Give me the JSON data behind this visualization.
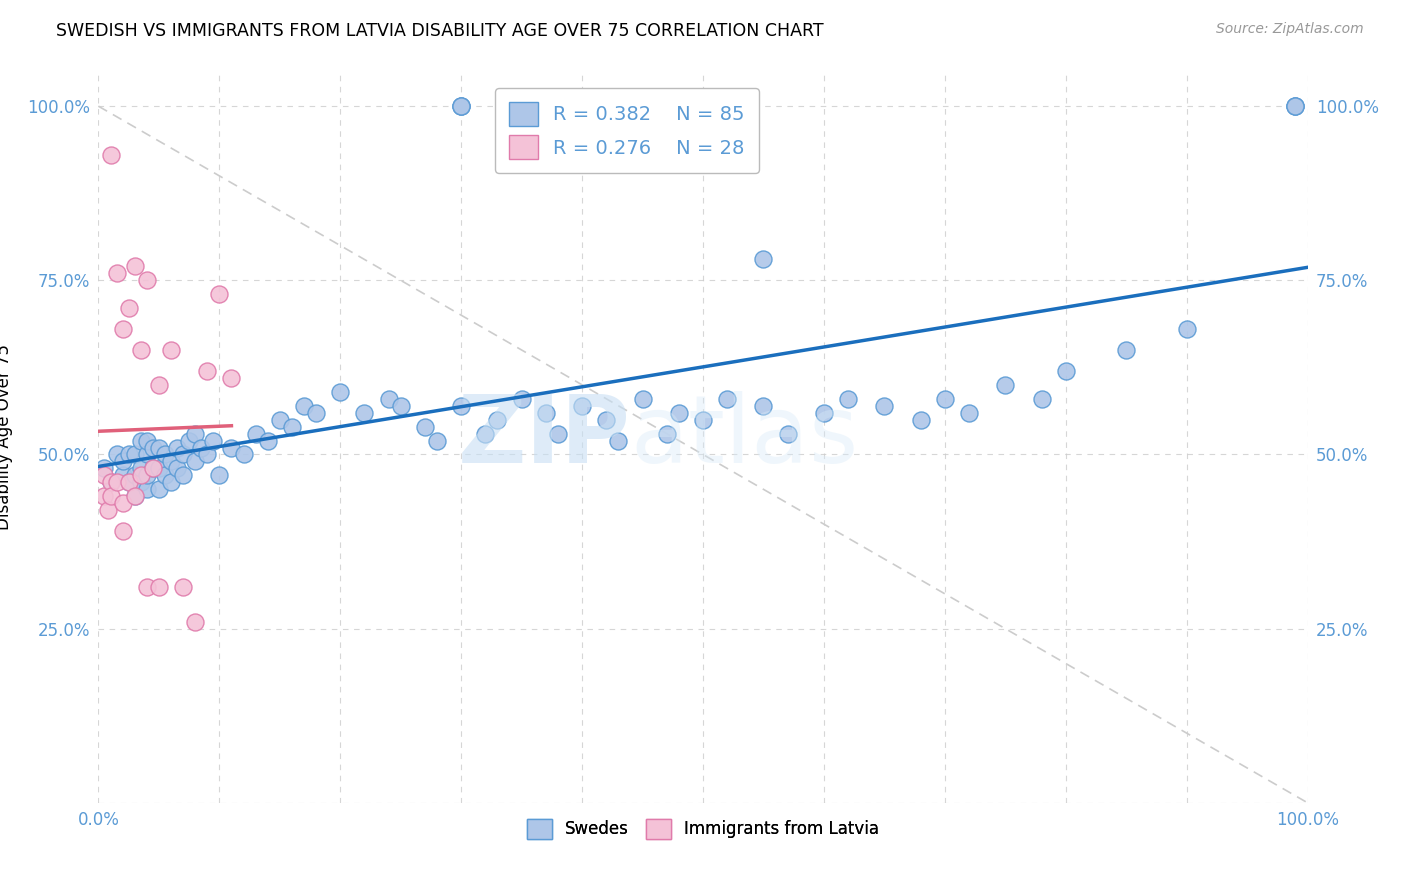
{
  "title": "SWEDISH VS IMMIGRANTS FROM LATVIA DISABILITY AGE OVER 75 CORRELATION CHART",
  "source": "Source: ZipAtlas.com",
  "ylabel": "Disability Age Over 75",
  "xlim": [
    0.0,
    1.0
  ],
  "ylim": [
    0.0,
    1.05
  ],
  "ytick_positions": [
    0.0,
    0.25,
    0.5,
    0.75,
    1.0
  ],
  "ytick_labels_left": [
    "",
    "25.0%",
    "50.0%",
    "75.0%",
    "100.0%"
  ],
  "ytick_labels_right": [
    "",
    "25.0%",
    "50.0%",
    "75.0%",
    "100.0%"
  ],
  "xtick_positions": [
    0.0,
    0.1,
    0.2,
    0.3,
    0.4,
    0.5,
    0.6,
    0.7,
    0.8,
    0.9,
    1.0
  ],
  "xtick_labels": [
    "0.0%",
    "",
    "",
    "",
    "",
    "",
    "",
    "",
    "",
    "",
    "100.0%"
  ],
  "swedes_fill": "#aec6e8",
  "swedes_edge": "#5b9bd5",
  "latvians_fill": "#f4c2d7",
  "latvians_edge": "#e07bab",
  "trend_blue": "#1a6ebd",
  "trend_pink": "#e0607a",
  "diagonal_color": "#cccccc",
  "grid_color": "#cccccc",
  "tick_color": "#5b9bd5",
  "R_swedes": 0.382,
  "N_swedes": 85,
  "R_latvians": 0.276,
  "N_latvians": 28,
  "watermark_zip": "ZIP",
  "watermark_atlas": "atlas",
  "swedes_x": [
    0.005,
    0.01,
    0.015,
    0.02,
    0.02,
    0.025,
    0.025,
    0.03,
    0.03,
    0.03,
    0.035,
    0.035,
    0.035,
    0.04,
    0.04,
    0.04,
    0.04,
    0.045,
    0.045,
    0.05,
    0.05,
    0.05,
    0.055,
    0.055,
    0.06,
    0.06,
    0.065,
    0.065,
    0.07,
    0.07,
    0.075,
    0.08,
    0.08,
    0.085,
    0.09,
    0.095,
    0.1,
    0.11,
    0.12,
    0.13,
    0.14,
    0.15,
    0.16,
    0.17,
    0.18,
    0.2,
    0.22,
    0.24,
    0.25,
    0.27,
    0.28,
    0.3,
    0.32,
    0.33,
    0.35,
    0.37,
    0.38,
    0.4,
    0.42,
    0.43,
    0.45,
    0.47,
    0.48,
    0.5,
    0.52,
    0.55,
    0.57,
    0.6,
    0.62,
    0.65,
    0.68,
    0.7,
    0.72,
    0.75,
    0.78,
    0.8,
    0.85,
    0.9,
    0.3,
    0.3,
    0.3,
    0.99,
    0.99,
    0.99,
    0.55
  ],
  "swedes_y": [
    0.48,
    0.46,
    0.5,
    0.47,
    0.49,
    0.46,
    0.5,
    0.44,
    0.47,
    0.5,
    0.46,
    0.48,
    0.52,
    0.45,
    0.47,
    0.5,
    0.52,
    0.48,
    0.51,
    0.45,
    0.48,
    0.51,
    0.47,
    0.5,
    0.46,
    0.49,
    0.48,
    0.51,
    0.47,
    0.5,
    0.52,
    0.49,
    0.53,
    0.51,
    0.5,
    0.52,
    0.47,
    0.51,
    0.5,
    0.53,
    0.52,
    0.55,
    0.54,
    0.57,
    0.56,
    0.59,
    0.56,
    0.58,
    0.57,
    0.54,
    0.52,
    0.57,
    0.53,
    0.55,
    0.58,
    0.56,
    0.53,
    0.57,
    0.55,
    0.52,
    0.58,
    0.53,
    0.56,
    0.55,
    0.58,
    0.57,
    0.53,
    0.56,
    0.58,
    0.57,
    0.55,
    0.58,
    0.56,
    0.6,
    0.58,
    0.62,
    0.65,
    0.68,
    1.0,
    1.0,
    1.0,
    1.0,
    1.0,
    1.0,
    0.78
  ],
  "latvians_x": [
    0.005,
    0.005,
    0.008,
    0.01,
    0.01,
    0.01,
    0.015,
    0.015,
    0.02,
    0.02,
    0.02,
    0.025,
    0.025,
    0.03,
    0.03,
    0.035,
    0.035,
    0.04,
    0.04,
    0.045,
    0.05,
    0.05,
    0.06,
    0.07,
    0.08,
    0.09,
    0.1,
    0.11
  ],
  "latvians_y": [
    0.47,
    0.44,
    0.42,
    0.93,
    0.46,
    0.44,
    0.76,
    0.46,
    0.39,
    0.43,
    0.68,
    0.46,
    0.71,
    0.44,
    0.77,
    0.47,
    0.65,
    0.31,
    0.75,
    0.48,
    0.31,
    0.6,
    0.65,
    0.31,
    0.26,
    0.62,
    0.73,
    0.61
  ]
}
